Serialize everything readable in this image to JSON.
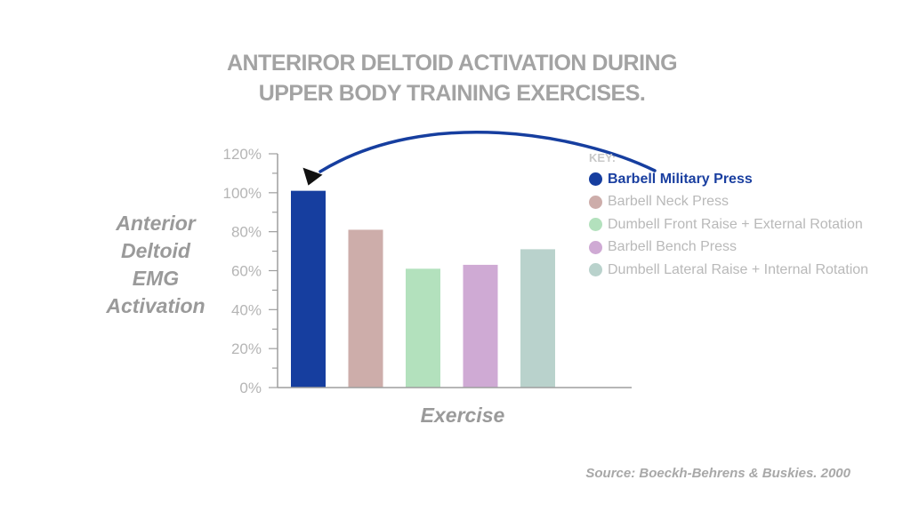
{
  "title_lines": [
    "ANTERIROR DELTOID ACTIVATION DURING",
    "UPPER BODY TRAINING EXERCISES."
  ],
  "ylabel_lines": [
    "Anterior",
    "Deltoid",
    "EMG",
    "Activation"
  ],
  "xlabel": "Exercise",
  "source": "Source: Boeckh-Behrens & Buskies. 2000",
  "legend": {
    "title": "KEY:",
    "items": [
      {
        "label": "Barbell Military Press",
        "color": "#163e9f",
        "highlighted": true
      },
      {
        "label": "Barbell Neck Press",
        "color": "#cdadaa",
        "highlighted": false
      },
      {
        "label": "Dumbell Front Raise + External Rotation",
        "color": "#b3e1bd",
        "highlighted": false
      },
      {
        "label": "Barbell Bench Press",
        "color": "#cfaad4",
        "highlighted": false
      },
      {
        "label": "Dumbell Lateral Raise + Internal Rotation",
        "color": "#b9d2cc",
        "highlighted": false
      }
    ]
  },
  "colors": {
    "arrow": "#163e9f",
    "axis": "#9e9e9e",
    "tick_text": "#b5b5b5"
  },
  "chart_data": {
    "type": "bar",
    "title": "ANTERIROR DELTOID ACTIVATION DURING UPPER BODY TRAINING EXERCISES.",
    "xlabel": "Exercise",
    "ylabel": "Anterior Deltoid EMG Activation",
    "ylim": [
      0,
      120
    ],
    "yticks": [
      0,
      20,
      40,
      60,
      80,
      100,
      120
    ],
    "ytick_labels": [
      "0%",
      "20%",
      "40%",
      "60%",
      "80%",
      "100%",
      "120%"
    ],
    "categories": [
      "Barbell Military Press",
      "Barbell Neck Press",
      "Dumbell Front Raise + External Rotation",
      "Barbell Bench Press",
      "Dumbell Lateral Raise + Internal Rotation"
    ],
    "values": [
      101,
      81,
      61,
      63,
      71
    ],
    "colors": [
      "#163e9f",
      "#cdadaa",
      "#b3e1bd",
      "#cfaad4",
      "#b9d2cc"
    ],
    "grid": false,
    "legend_position": "right"
  }
}
